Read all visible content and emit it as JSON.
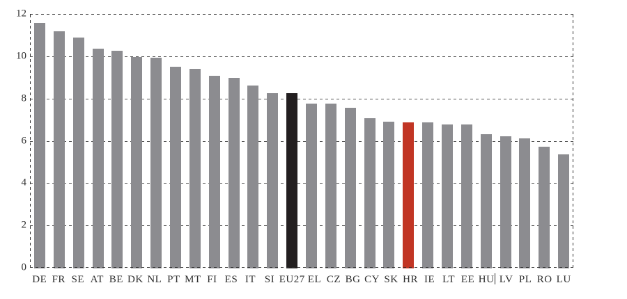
{
  "chart_data": {
    "type": "bar",
    "title": "",
    "xlabel": "",
    "ylabel": "",
    "categories": [
      "DE",
      "FR",
      "SE",
      "AT",
      "BE",
      "DK",
      "NL",
      "PT",
      "MT",
      "FI",
      "ES",
      "IT",
      "SI",
      "EU27",
      "EL",
      "CZ",
      "BG",
      "CY",
      "SK",
      "HR",
      "IE",
      "LT",
      "EE",
      "HU",
      "LV",
      "PL",
      "RO",
      "LU"
    ],
    "values": [
      11.6,
      11.2,
      10.9,
      10.4,
      10.3,
      10.0,
      9.95,
      9.55,
      9.45,
      9.1,
      9.0,
      8.65,
      8.3,
      8.3,
      7.8,
      7.8,
      7.6,
      7.1,
      6.95,
      6.9,
      6.9,
      6.8,
      6.8,
      6.35,
      6.25,
      6.15,
      5.75,
      5.4
    ],
    "ylim": [
      0,
      12
    ],
    "yticks": [
      0,
      2,
      4,
      6,
      8,
      10,
      12
    ],
    "grid": "horizontal-dashed",
    "frame": "dashed-rectangle",
    "legend": "none",
    "default_bar_color": "#8c8c90",
    "highlight_bar_colors": {
      "EU27": "#231f20",
      "HR": "#c13524"
    },
    "axis_text_color": "#2e2e2e",
    "background_color": "#ffffff",
    "stray_mark_after_label": "HU"
  }
}
